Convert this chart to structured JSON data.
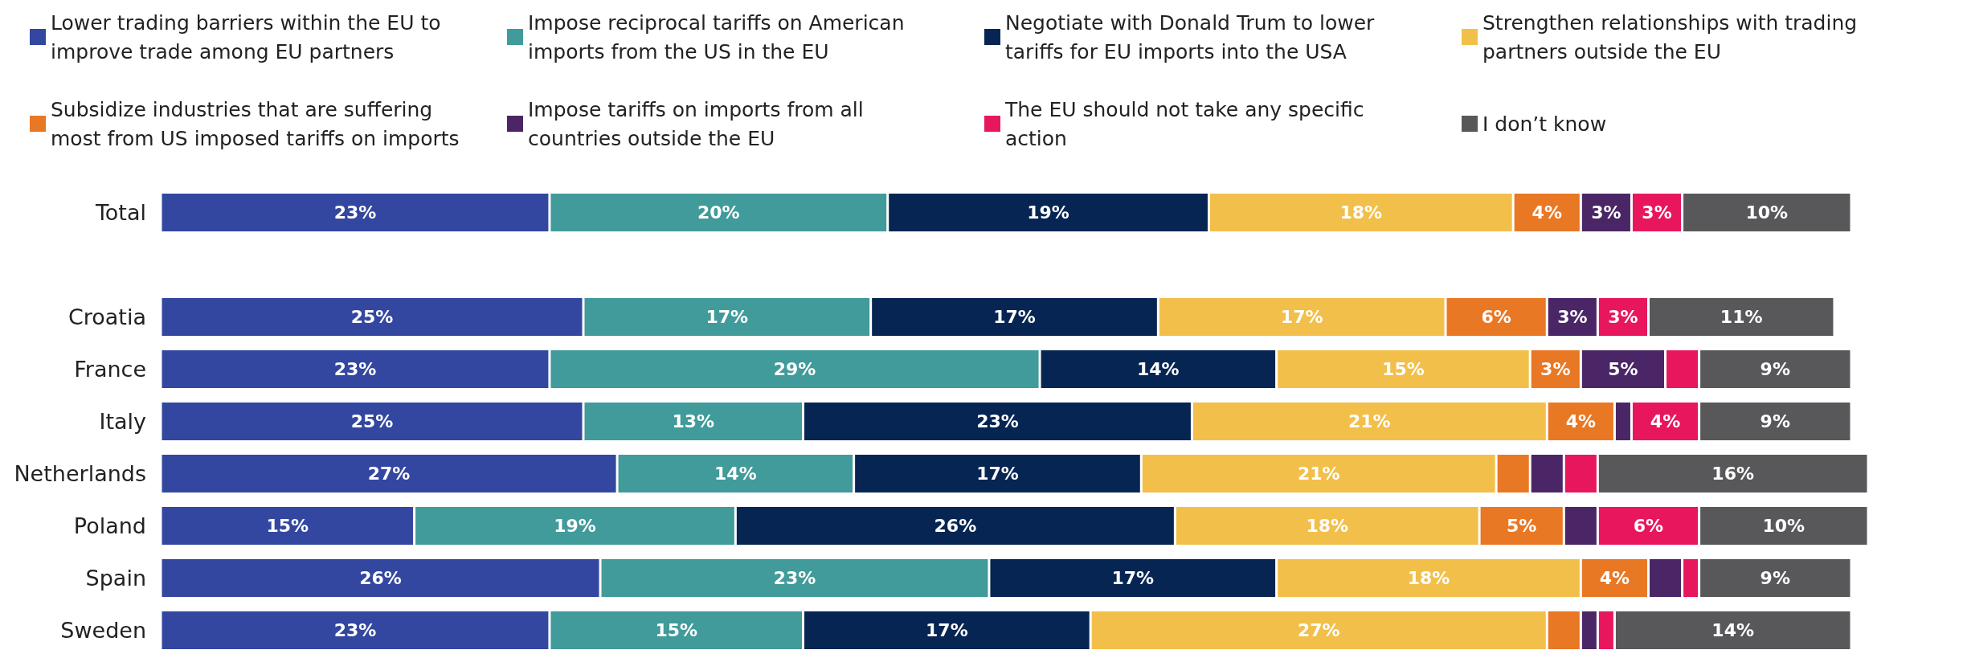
{
  "chart_data": {
    "type": "bar",
    "orientation": "horizontal",
    "stacked": true,
    "legend": "top",
    "categories": [
      "Total",
      null,
      "Croatia",
      "France",
      "Italy",
      "Netherlands",
      "Poland",
      "Spain",
      "Sweden"
    ],
    "series": [
      {
        "name": "Lower trading barriers within the EU to improve trade among EU partners",
        "color": "#3347a0",
        "values": [
          23,
          null,
          25,
          23,
          25,
          27,
          15,
          26,
          23
        ],
        "value_labels": [
          "23%",
          null,
          "25%",
          "23%",
          "25%",
          "27%",
          "15%",
          "26%",
          "23%"
        ]
      },
      {
        "name": "Impose reciprocal tariffs on American imports from the US in the EU",
        "color": "#419b9a",
        "values": [
          20,
          null,
          17,
          29,
          13,
          14,
          19,
          23,
          15
        ],
        "value_labels": [
          "20%",
          null,
          "17%",
          "29%",
          "13%",
          "14%",
          "19%",
          "23%",
          "15%"
        ]
      },
      {
        "name": "Negotiate with Donald Trum to lower tariffs for EU imports into the USA",
        "color": "#062553",
        "values": [
          19,
          null,
          17,
          14,
          23,
          17,
          26,
          17,
          17
        ],
        "value_labels": [
          "19%",
          null,
          "17%",
          "14%",
          "23%",
          "17%",
          "26%",
          "17%",
          "17%"
        ]
      },
      {
        "name": "Strengthen relationships with trading partners outside the EU",
        "color": "#f2bf4a",
        "values": [
          18,
          null,
          17,
          15,
          21,
          21,
          18,
          18,
          27
        ],
        "value_labels": [
          "18%",
          null,
          "17%",
          "15%",
          "21%",
          "21%",
          "18%",
          "18%",
          "27%"
        ]
      },
      {
        "name": "Subsidize industries that are suffering most from US imposed tariffs on imports",
        "color": "#e97824",
        "values": [
          4,
          null,
          6,
          3,
          4,
          2,
          5,
          4,
          2
        ],
        "value_labels": [
          "4%",
          null,
          "6%",
          "3%",
          "4%",
          null,
          "5%",
          "4%",
          null
        ]
      },
      {
        "name": "Impose tariffs on imports from all countries outside the EU",
        "color": "#4a2667",
        "values": [
          3,
          null,
          3,
          5,
          1,
          2,
          2,
          2,
          1
        ],
        "value_labels": [
          "3%",
          null,
          "3%",
          "5%",
          null,
          null,
          null,
          null,
          null
        ]
      },
      {
        "name": "The EU should not take any specific action",
        "color": "#e8175d",
        "values": [
          3,
          null,
          3,
          2,
          4,
          2,
          6,
          1,
          1
        ],
        "value_labels": [
          "3%",
          null,
          "3%",
          null,
          "4%",
          null,
          "6%",
          null,
          null
        ]
      },
      {
        "name": "I don’t know",
        "color": "#58585a",
        "values": [
          10,
          null,
          11,
          9,
          9,
          16,
          10,
          9,
          14
        ],
        "value_labels": [
          "10%",
          null,
          "11%",
          "9%",
          "9%",
          "16%",
          "10%",
          "9%",
          "14%"
        ]
      }
    ]
  }
}
